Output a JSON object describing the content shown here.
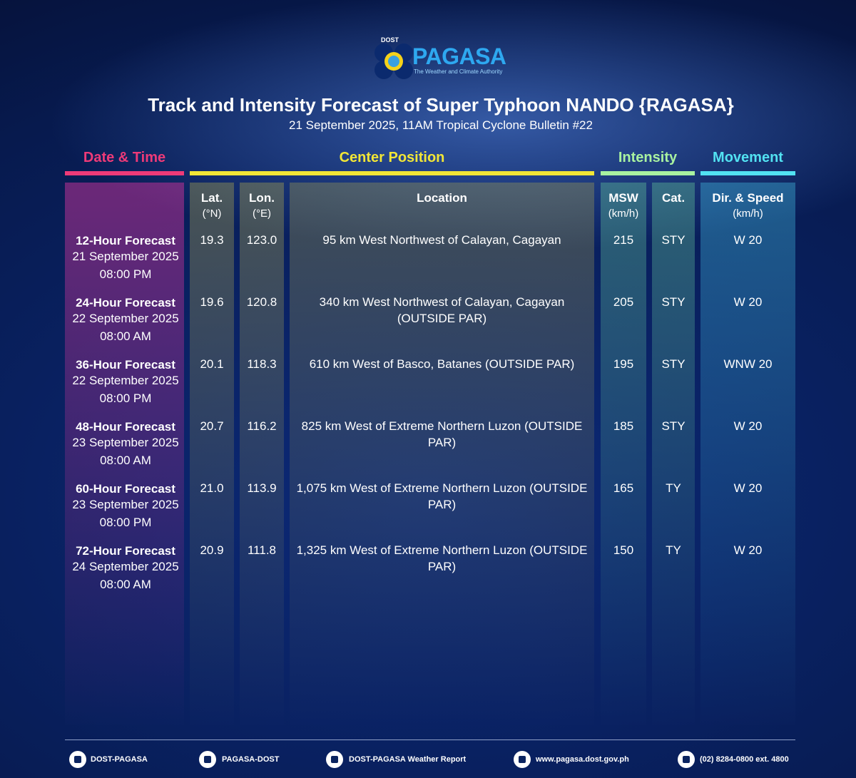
{
  "header": {
    "agency": "DOST",
    "logo_text": "PAGASA",
    "tagline": "The Weather and Climate Authority",
    "title": "Track and Intensity Forecast of Super Typhoon NANDO {RAGASA}",
    "subtitle": "21 September 2025, 11AM Tropical Cyclone Bulletin #22"
  },
  "table": {
    "groups": [
      "Date & Time",
      "Center Position",
      "Intensity",
      "Movement"
    ],
    "columns": [
      {
        "name": "Lat.",
        "unit": "(°N)"
      },
      {
        "name": "Lon.",
        "unit": "(°E)"
      },
      {
        "name": "Location"
      },
      {
        "name": "MSW",
        "unit": "(km/h)"
      },
      {
        "name": "Cat."
      },
      {
        "name": "Dir. & Speed",
        "unit": "(km/h)"
      }
    ],
    "rows": [
      {
        "forecast": "12-Hour Forecast",
        "date": "21 September 2025",
        "time": "08:00 PM",
        "lat": "19.3",
        "lon": "123.0",
        "location": "95 km West Northwest of Calayan, Cagayan",
        "msw": "215",
        "cat": "STY",
        "movement": "W 20"
      },
      {
        "forecast": "24-Hour Forecast",
        "date": "22 September 2025",
        "time": "08:00 AM",
        "lat": "19.6",
        "lon": "120.8",
        "location": "340 km West Northwest of Calayan, Cagayan (OUTSIDE PAR)",
        "msw": "205",
        "cat": "STY",
        "movement": "W 20"
      },
      {
        "forecast": "36-Hour Forecast",
        "date": "22 September 2025",
        "time": "08:00 PM",
        "lat": "20.1",
        "lon": "118.3",
        "location": "610 km West of Basco, Batanes (OUTSIDE PAR)",
        "msw": "195",
        "cat": "STY",
        "movement": "WNW 20"
      },
      {
        "forecast": "48-Hour Forecast",
        "date": "23 September 2025",
        "time": "08:00 AM",
        "lat": "20.7",
        "lon": "116.2",
        "location": "825 km West of Extreme Northern Luzon (OUTSIDE PAR)",
        "msw": "185",
        "cat": "STY",
        "movement": "W 20"
      },
      {
        "forecast": "60-Hour Forecast",
        "date": "23 September 2025",
        "time": "08:00 PM",
        "lat": "21.0",
        "lon": "113.9",
        "location": "1,075 km West of Extreme Northern Luzon (OUTSIDE PAR)",
        "msw": "165",
        "cat": "TY",
        "movement": "W 20"
      },
      {
        "forecast": "72-Hour Forecast",
        "date": "24 September 2025",
        "time": "08:00 AM",
        "lat": "20.9",
        "lon": "111.8",
        "location": "1,325 km West of Extreme Northern Luzon (OUTSIDE PAR)",
        "msw": "150",
        "cat": "TY",
        "movement": "W 20"
      }
    ]
  },
  "footer": {
    "items": [
      "DOST-PAGASA",
      "PAGASA-DOST",
      "DOST-PAGASA Weather Report",
      "www.pagasa.dost.gov.ph",
      "(02) 8284-0800 ext. 4800"
    ]
  }
}
